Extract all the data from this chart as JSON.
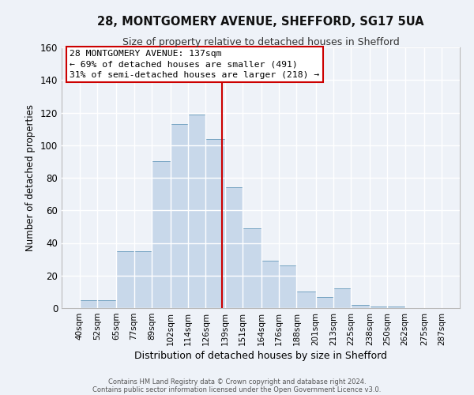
{
  "title": "28, MONTGOMERY AVENUE, SHEFFORD, SG17 5UA",
  "subtitle": "Size of property relative to detached houses in Shefford",
  "xlabel": "Distribution of detached houses by size in Shefford",
  "ylabel": "Number of detached properties",
  "bar_color": "#c8d8ea",
  "bar_edge_color": "#6699bb",
  "background_color": "#eef2f8",
  "grid_color": "#ffffff",
  "bin_labels": [
    "40sqm",
    "52sqm",
    "65sqm",
    "77sqm",
    "89sqm",
    "102sqm",
    "114sqm",
    "126sqm",
    "139sqm",
    "151sqm",
    "164sqm",
    "176sqm",
    "188sqm",
    "201sqm",
    "213sqm",
    "225sqm",
    "238sqm",
    "250sqm",
    "262sqm",
    "275sqm",
    "287sqm"
  ],
  "bin_edges": [
    40,
    52,
    65,
    77,
    89,
    102,
    114,
    126,
    139,
    151,
    164,
    176,
    188,
    201,
    213,
    225,
    238,
    250,
    262,
    275,
    287
  ],
  "bar_heights": [
    5,
    5,
    35,
    35,
    90,
    113,
    119,
    104,
    74,
    49,
    29,
    26,
    10,
    7,
    12,
    2,
    1,
    1,
    0,
    0
  ],
  "vline_x": 137,
  "vline_color": "#cc0000",
  "ylim": [
    0,
    160
  ],
  "yticks": [
    0,
    20,
    40,
    60,
    80,
    100,
    120,
    140,
    160
  ],
  "annotation_title": "28 MONTGOMERY AVENUE: 137sqm",
  "annotation_line1": "← 69% of detached houses are smaller (491)",
  "annotation_line2": "31% of semi-detached houses are larger (218) →",
  "annotation_box_color": "#ffffff",
  "annotation_box_edge_color": "#cc0000",
  "footer1": "Contains HM Land Registry data © Crown copyright and database right 2024.",
  "footer2": "Contains public sector information licensed under the Open Government Licence v3.0."
}
